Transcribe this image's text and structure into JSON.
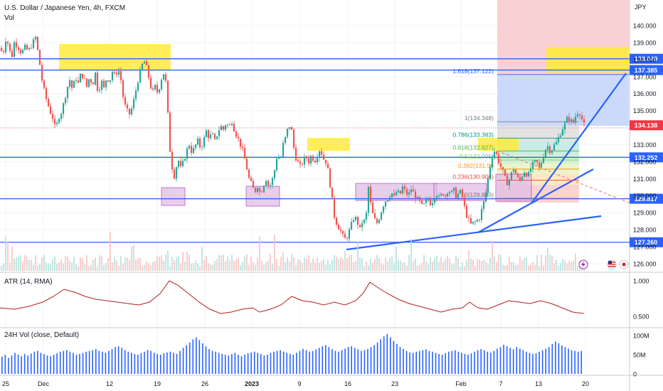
{
  "header": {
    "title": "U.S. Dollar / Japanese Yen, 4h, FXCM",
    "vol_label": "Vol",
    "currency": "JPY",
    "atr_label": "ATR (14, RMA)",
    "vol24_label": "24H Vol (close, Default)"
  },
  "colors": {
    "up": "#26a69a",
    "down": "#ef5350",
    "hline": "#2962ff",
    "trend": "#2962ff",
    "highlight_yellow": "#ffeb3b",
    "box_purple": "#e1bee7",
    "atr_line": "#b71c1c",
    "vol_bar": "#2962ff",
    "price_badge": "#f23645"
  },
  "icons": [
    "lightning-icon",
    "us-flag-icon",
    "japan-flag-icon"
  ],
  "chart_data": [
    {
      "type": "candlestick",
      "title": "U.S. Dollar / Japanese Yen, 4h, FXCM",
      "ylabel": "JPY",
      "ylim": [
        126.0,
        141.0
      ],
      "y_ticks": [
        "140.000",
        "139.000",
        "138.000",
        "137.000",
        "136.000",
        "135.000",
        "134.000",
        "133.000",
        "132.000",
        "131.000",
        "130.000",
        "129.000",
        "128.000",
        "127.000",
        "126.000"
      ],
      "x_ticks": [
        "25",
        "Dec",
        "12",
        "19",
        "26",
        "2023",
        "9",
        "16",
        "23",
        "Feb",
        "7",
        "13",
        "20"
      ],
      "last_price": "134.138",
      "horizontal_levels": [
        "138.049",
        "137.385",
        "132.252",
        "129.817",
        "127.260"
      ],
      "fibonacci": [
        {
          "label": "1.618(137.122)",
          "value": 137.122
        },
        {
          "label": "1(134.348)",
          "value": 134.348
        },
        {
          "label": "0.786(133.383)",
          "value": 133.383
        },
        {
          "label": "0.618(132.627)",
          "value": 132.627
        },
        {
          "label": "0.5(132.095)",
          "value": 132.095
        },
        {
          "label": "0.382(131.56",
          "value": 131.56
        },
        {
          "label": "0.236(130.906)",
          "value": 130.906
        },
        {
          "label": "0(129.843)",
          "value": 129.843
        }
      ],
      "close_path": [
        [
          0,
          138.7
        ],
        [
          4,
          138.3
        ],
        [
          8,
          139.2
        ],
        [
          12,
          138.9
        ],
        [
          16,
          138.0
        ],
        [
          20,
          139.0
        ],
        [
          25,
          138.8
        ],
        [
          30,
          138.4
        ],
        [
          35,
          138.7
        ],
        [
          40,
          138.5
        ],
        [
          45,
          138.9
        ],
        [
          50,
          139.3
        ],
        [
          55,
          138.0
        ],
        [
          60,
          136.5
        ],
        [
          65,
          135.7
        ],
        [
          70,
          135.0
        ],
        [
          75,
          134.5
        ],
        [
          78,
          133.8
        ],
        [
          82,
          134.6
        ],
        [
          86,
          134.9
        ],
        [
          90,
          135.5
        ],
        [
          94,
          136.3
        ],
        [
          98,
          136.8
        ],
        [
          102,
          136.2
        ],
        [
          106,
          137.0
        ],
        [
          110,
          136.6
        ],
        [
          114,
          137.2
        ],
        [
          118,
          136.9
        ],
        [
          122,
          136.4
        ],
        [
          126,
          137.0
        ],
        [
          130,
          136.5
        ],
        [
          134,
          137.2
        ],
        [
          138,
          136.0
        ],
        [
          142,
          136.8
        ],
        [
          146,
          136.3
        ],
        [
          150,
          137.0
        ],
        [
          154,
          136.7
        ],
        [
          158,
          137.3
        ],
        [
          162,
          137.0
        ],
        [
          166,
          137.5
        ],
        [
          170,
          136.8
        ],
        [
          174,
          135.5
        ],
        [
          178,
          135.0
        ],
        [
          182,
          134.8
        ],
        [
          186,
          135.2
        ],
        [
          190,
          136.0
        ],
        [
          194,
          136.8
        ],
        [
          198,
          137.4
        ],
        [
          202,
          138.0
        ],
        [
          206,
          137.5
        ],
        [
          210,
          136.8
        ],
        [
          214,
          136.0
        ],
        [
          218,
          136.4
        ],
        [
          222,
          136.0
        ],
        [
          226,
          136.8
        ],
        [
          230,
          137.2
        ],
        [
          234,
          136.5
        ],
        [
          238,
          133.0
        ],
        [
          241,
          132.0
        ],
        [
          244,
          131.0
        ],
        [
          247,
          131.5
        ],
        [
          250,
          132.2
        ],
        [
          254,
          131.6
        ],
        [
          258,
          132.0
        ],
        [
          262,
          132.6
        ],
        [
          266,
          133.0
        ],
        [
          270,
          132.5
        ],
        [
          274,
          132.9
        ],
        [
          278,
          133.2
        ],
        [
          282,
          132.8
        ],
        [
          286,
          133.2
        ],
        [
          290,
          133.8
        ],
        [
          294,
          133.4
        ],
        [
          298,
          133.6
        ],
        [
          302,
          133.2
        ],
        [
          306,
          133.7
        ],
        [
          310,
          134.1
        ],
        [
          314,
          133.9
        ],
        [
          318,
          134.3
        ],
        [
          322,
          134.0
        ],
        [
          326,
          134.4
        ],
        [
          330,
          133.8
        ],
        [
          334,
          133.4
        ],
        [
          338,
          133.0
        ],
        [
          342,
          132.5
        ],
        [
          346,
          131.8
        ],
        [
          350,
          131.0
        ],
        [
          354,
          130.6
        ],
        [
          358,
          130.2
        ],
        [
          362,
          130.6
        ],
        [
          366,
          130.1
        ],
        [
          370,
          130.6
        ],
        [
          374,
          131.0
        ],
        [
          378,
          130.5
        ],
        [
          382,
          130.8
        ],
        [
          386,
          131.5
        ],
        [
          390,
          132.5
        ],
        [
          394,
          132.0
        ],
        [
          398,
          133.0
        ],
        [
          402,
          133.5
        ],
        [
          406,
          134.2
        ],
        [
          410,
          133.8
        ],
        [
          414,
          132.5
        ],
        [
          418,
          132.0
        ],
        [
          422,
          131.7
        ],
        [
          426,
          132.0
        ],
        [
          430,
          132.3
        ],
        [
          434,
          132.0
        ],
        [
          438,
          132.4
        ],
        [
          442,
          132.0
        ],
        [
          446,
          132.4
        ],
        [
          450,
          132.8
        ],
        [
          454,
          132.2
        ],
        [
          458,
          132.0
        ],
        [
          462,
          131.3
        ],
        [
          466,
          130.0
        ],
        [
          470,
          128.8
        ],
        [
          474,
          128.3
        ],
        [
          478,
          128.0
        ],
        [
          482,
          127.6
        ],
        [
          486,
          127.4
        ],
        [
          490,
          127.8
        ],
        [
          494,
          128.3
        ],
        [
          498,
          128.8
        ],
        [
          502,
          128.5
        ],
        [
          506,
          128.0
        ],
        [
          510,
          128.6
        ],
        [
          514,
          128.4
        ],
        [
          518,
          130.5
        ],
        [
          522,
          129.2
        ],
        [
          526,
          128.6
        ],
        [
          530,
          128.4
        ],
        [
          534,
          128.8
        ],
        [
          538,
          129.4
        ],
        [
          542,
          129.7
        ],
        [
          546,
          129.9
        ],
        [
          550,
          130.2
        ],
        [
          554,
          129.9
        ],
        [
          558,
          130.3
        ],
        [
          562,
          130.0
        ],
        [
          566,
          130.5
        ],
        [
          570,
          130.2
        ],
        [
          574,
          130.0
        ],
        [
          578,
          130.4
        ],
        [
          582,
          130.1
        ],
        [
          586,
          129.8
        ],
        [
          590,
          129.6
        ],
        [
          594,
          129.3
        ],
        [
          598,
          129.6
        ],
        [
          602,
          129.8
        ],
        [
          606,
          129.5
        ],
        [
          610,
          129.9
        ],
        [
          614,
          130.1
        ],
        [
          618,
          129.8
        ],
        [
          622,
          130.2
        ],
        [
          626,
          130.0
        ],
        [
          630,
          130.4
        ],
        [
          634,
          130.1
        ],
        [
          638,
          130.3
        ],
        [
          642,
          129.9
        ],
        [
          646,
          130.3
        ],
        [
          650,
          129.9
        ],
        [
          654,
          129.1
        ],
        [
          658,
          128.6
        ],
        [
          662,
          128.3
        ],
        [
          666,
          128.4
        ],
        [
          670,
          128.5
        ],
        [
          674,
          128.7
        ],
        [
          678,
          129.3
        ],
        [
          682,
          129.9
        ],
        [
          686,
          131.0
        ],
        [
          690,
          132.0
        ],
        [
          694,
          132.7
        ],
        [
          698,
          132.4
        ],
        [
          702,
          131.9
        ],
        [
          706,
          131.5
        ],
        [
          710,
          131.0
        ],
        [
          714,
          130.7
        ],
        [
          718,
          131.2
        ],
        [
          722,
          131.6
        ],
        [
          726,
          131.2
        ],
        [
          730,
          130.8
        ],
        [
          734,
          131.2
        ],
        [
          738,
          131.5
        ],
        [
          742,
          131.1
        ],
        [
          746,
          131.6
        ],
        [
          750,
          131.9
        ],
        [
          754,
          132.0
        ],
        [
          758,
          131.6
        ],
        [
          762,
          132.1
        ],
        [
          766,
          132.7
        ],
        [
          770,
          132.9
        ],
        [
          774,
          132.6
        ],
        [
          778,
          132.9
        ],
        [
          782,
          133.1
        ],
        [
          786,
          133.5
        ],
        [
          790,
          133.9
        ],
        [
          794,
          134.2
        ],
        [
          798,
          134.6
        ],
        [
          802,
          134.4
        ],
        [
          806,
          134.3
        ],
        [
          810,
          134.8
        ],
        [
          814,
          135.0
        ],
        [
          818,
          134.5
        ],
        [
          821,
          134.14
        ]
      ]
    },
    {
      "type": "line",
      "title": "ATR (14, RMA)",
      "y_ticks": [
        "1.000",
        "0.500"
      ],
      "ylim": [
        0.3,
        1.05
      ],
      "path": [
        [
          0,
          0.62
        ],
        [
          20,
          0.6
        ],
        [
          40,
          0.64
        ],
        [
          60,
          0.7
        ],
        [
          75,
          0.78
        ],
        [
          90,
          0.88
        ],
        [
          105,
          0.84
        ],
        [
          120,
          0.78
        ],
        [
          135,
          0.74
        ],
        [
          150,
          0.72
        ],
        [
          165,
          0.7
        ],
        [
          180,
          0.68
        ],
        [
          195,
          0.66
        ],
        [
          210,
          0.7
        ],
        [
          225,
          0.82
        ],
        [
          238,
          1.0
        ],
        [
          250,
          0.94
        ],
        [
          265,
          0.82
        ],
        [
          280,
          0.7
        ],
        [
          295,
          0.6
        ],
        [
          310,
          0.54
        ],
        [
          325,
          0.56
        ],
        [
          340,
          0.6
        ],
        [
          355,
          0.62
        ],
        [
          365,
          0.56
        ],
        [
          380,
          0.6
        ],
        [
          395,
          0.66
        ],
        [
          410,
          0.78
        ],
        [
          425,
          0.72
        ],
        [
          440,
          0.7
        ],
        [
          455,
          0.66
        ],
        [
          470,
          0.7
        ],
        [
          485,
          0.66
        ],
        [
          500,
          0.72
        ],
        [
          510,
          0.82
        ],
        [
          520,
          0.98
        ],
        [
          532,
          0.9
        ],
        [
          545,
          0.82
        ],
        [
          560,
          0.74
        ],
        [
          575,
          0.68
        ],
        [
          590,
          0.64
        ],
        [
          605,
          0.6
        ],
        [
          620,
          0.56
        ],
        [
          635,
          0.6
        ],
        [
          650,
          0.62
        ],
        [
          660,
          0.7
        ],
        [
          672,
          0.62
        ],
        [
          685,
          0.6
        ],
        [
          700,
          0.66
        ],
        [
          715,
          0.72
        ],
        [
          730,
          0.7
        ],
        [
          745,
          0.68
        ],
        [
          760,
          0.72
        ],
        [
          775,
          0.68
        ],
        [
          790,
          0.62
        ],
        [
          805,
          0.56
        ],
        [
          821,
          0.54
        ]
      ]
    },
    {
      "type": "bar",
      "title": "24H Vol (close, Default)",
      "y_ticks": [
        "100M",
        "50M",
        "0"
      ],
      "ylim": [
        0,
        110
      ],
      "values": [
        45,
        50,
        42,
        48,
        55,
        50,
        46,
        52,
        48,
        53,
        58,
        60,
        55,
        52,
        48,
        46,
        50,
        54,
        58,
        60,
        62,
        58,
        55,
        50,
        52,
        55,
        58,
        60,
        62,
        65,
        60,
        58,
        55,
        60,
        65,
        70,
        72,
        68,
        62,
        58,
        55,
        52,
        50,
        54,
        58,
        62,
        60,
        55,
        52,
        50,
        54,
        56,
        58,
        55,
        52,
        60,
        68,
        75,
        82,
        90,
        95,
        88,
        80,
        72,
        65,
        60,
        58,
        55,
        52,
        50,
        48,
        52,
        55,
        50,
        46,
        50,
        54,
        56,
        58,
        55,
        52,
        48,
        50,
        55,
        58,
        60,
        62,
        58,
        55,
        52,
        50,
        55,
        60,
        65,
        62,
        58,
        60,
        64,
        68,
        72,
        75,
        70,
        65,
        60,
        58,
        62,
        66,
        70,
        72,
        68,
        64,
        60,
        62,
        65,
        70,
        75,
        82,
        90,
        98,
        104,
        95,
        86,
        78,
        70,
        65,
        60,
        56,
        55,
        58,
        60,
        62,
        64,
        60,
        58,
        55,
        52,
        50,
        54,
        58,
        60,
        62,
        58,
        55,
        52,
        50,
        54,
        58,
        62,
        65,
        62,
        58,
        55,
        60,
        66,
        70,
        76,
        72,
        68,
        64,
        70,
        66,
        62,
        58,
        55,
        52,
        54,
        58,
        62,
        66,
        70,
        78,
        84,
        80,
        74,
        70,
        66,
        62,
        60,
        58,
        60
      ]
    }
  ]
}
